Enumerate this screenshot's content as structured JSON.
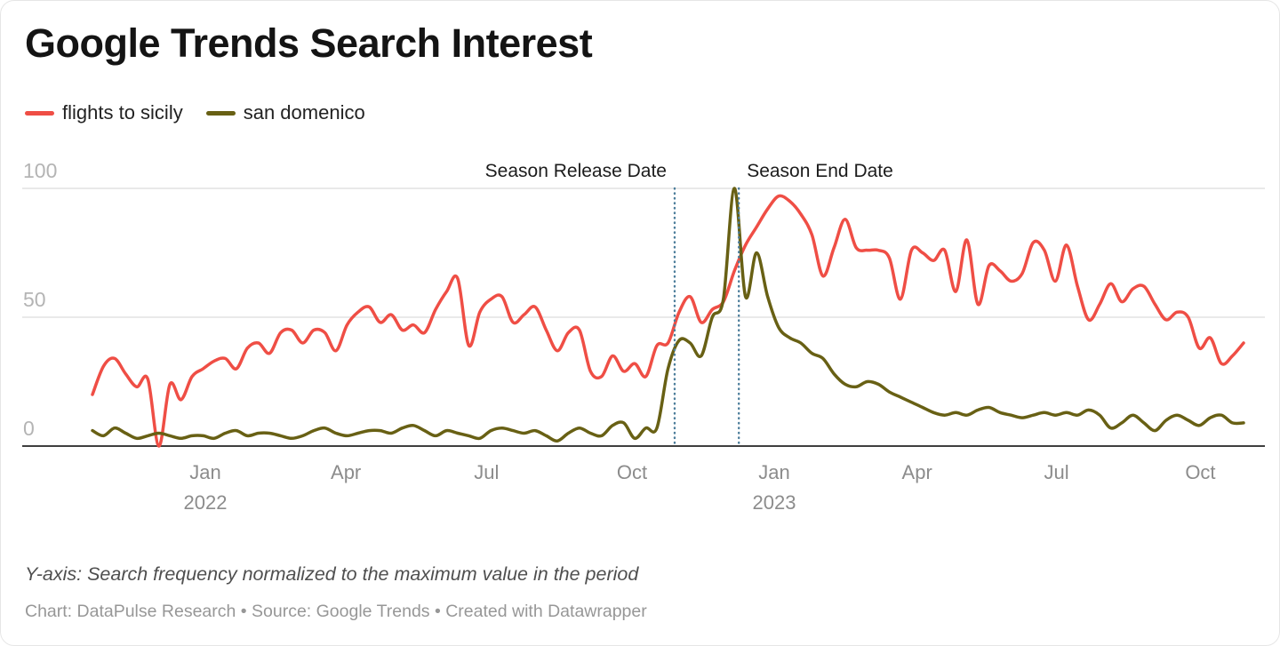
{
  "title": "Google Trends Search Interest",
  "legend": [
    {
      "label": "flights to sicily",
      "color": "#ef4e45"
    },
    {
      "label": "san domenico",
      "color": "#686014"
    }
  ],
  "footer": {
    "note": "Y-axis: Search frequency normalized to the maximum value in the period",
    "byline": "Chart: DataPulse Research • Source: Google Trends • Created with Datawrapper"
  },
  "colors": {
    "grid": "#e2e2e2",
    "baseline": "#3f3f3f",
    "event_line": "#4d7e9b",
    "y_tick_text": "#b4b4b4",
    "x_tick_text": "#8c8c8c"
  },
  "chart_data": {
    "type": "line",
    "title": "Google Trends Search Interest",
    "x_range": "Oct 2021 – Oct 2023",
    "interval": "weekly",
    "ylim": [
      0,
      100
    ],
    "grid": true,
    "legend_position": "top-left",
    "y_ticks": [
      {
        "label": "0",
        "value": 0
      },
      {
        "label": "50",
        "value": 50
      },
      {
        "label": "100",
        "value": 100
      }
    ],
    "x_ticks": [
      {
        "label": "Jan",
        "sublabel": "2022",
        "week": 10.2
      },
      {
        "label": "Apr",
        "sublabel": "",
        "week": 22.9
      },
      {
        "label": "Jul",
        "sublabel": "",
        "week": 35.6
      },
      {
        "label": "Oct",
        "sublabel": "",
        "week": 48.75
      },
      {
        "label": "Jan",
        "sublabel": "2023",
        "week": 61.6
      },
      {
        "label": "Apr",
        "sublabel": "",
        "week": 74.5
      },
      {
        "label": "Jul",
        "sublabel": "",
        "week": 87.1
      },
      {
        "label": "Oct",
        "sublabel": "",
        "week": 100.1
      }
    ],
    "events": [
      {
        "label": "Season Release Date",
        "week": 52.6,
        "align": "right"
      },
      {
        "label": "Season End Date",
        "week": 58.4,
        "align": "left"
      }
    ],
    "series": [
      {
        "name": "flights to sicily",
        "color": "#ef4e45",
        "values": [
          20,
          31,
          34,
          28,
          23,
          26,
          0,
          24,
          18,
          27,
          30,
          33,
          34,
          30,
          38,
          40,
          36,
          44,
          45,
          40,
          45,
          44,
          37,
          47,
          52,
          54,
          48,
          51,
          45,
          47,
          44,
          53,
          60,
          65,
          39,
          52,
          57,
          58,
          48,
          51,
          54,
          45,
          37,
          44,
          45,
          29,
          27,
          35,
          29,
          32,
          27,
          39,
          40,
          52,
          58,
          48,
          53,
          56,
          68,
          78,
          85,
          92,
          97,
          95,
          90,
          82,
          66,
          77,
          88,
          77,
          76,
          76,
          73,
          57,
          76,
          75,
          72,
          76,
          60,
          80,
          55,
          70,
          68,
          64,
          67,
          79,
          76,
          64,
          78,
          62,
          49,
          55,
          63,
          56,
          61,
          62,
          55,
          49,
          52,
          50,
          38,
          42,
          32,
          35,
          40
        ]
      },
      {
        "name": "san domenico",
        "color": "#686014",
        "values": [
          6,
          4,
          7,
          5,
          3,
          4,
          5,
          4,
          3,
          4,
          4,
          3,
          5,
          6,
          4,
          5,
          5,
          4,
          3,
          4,
          6,
          7,
          5,
          4,
          5,
          6,
          6,
          5,
          7,
          8,
          6,
          4,
          6,
          5,
          4,
          3,
          6,
          7,
          6,
          5,
          6,
          4,
          2,
          5,
          7,
          5,
          4,
          8,
          9,
          3,
          7,
          7,
          30,
          41,
          40,
          35,
          50,
          57,
          100,
          58,
          75,
          58,
          46,
          42,
          40,
          36,
          34,
          28,
          24,
          23,
          25,
          24,
          21,
          19,
          17,
          15,
          13,
          12,
          13,
          12,
          14,
          15,
          13,
          12,
          11,
          12,
          13,
          12,
          13,
          12,
          14,
          12,
          7,
          9,
          12,
          9,
          6,
          10,
          12,
          10,
          8,
          11,
          12,
          9,
          9
        ]
      }
    ]
  }
}
